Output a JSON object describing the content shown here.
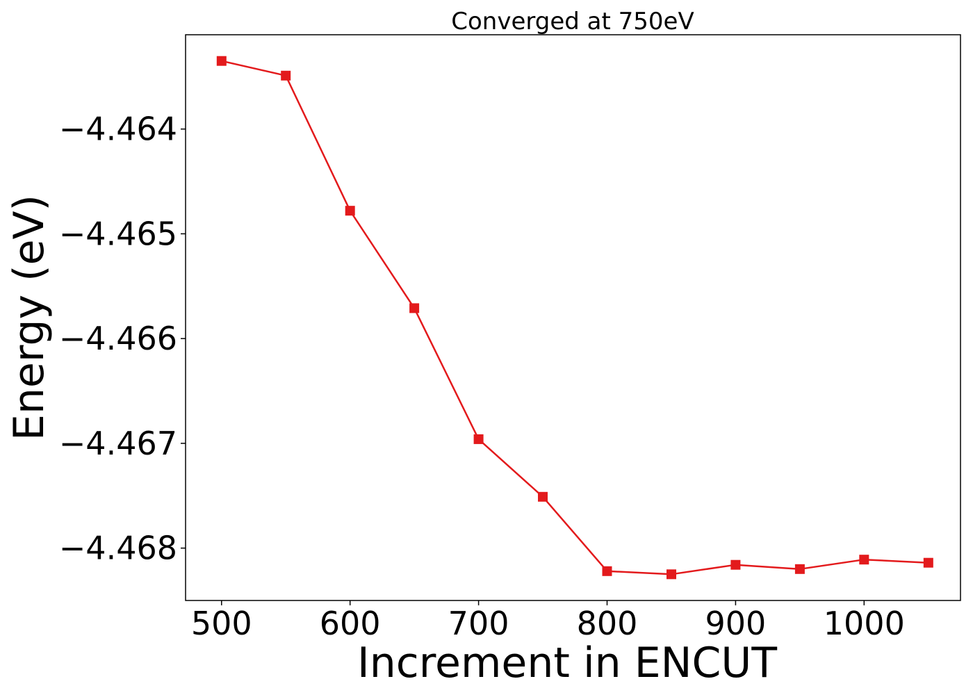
{
  "chart_data": {
    "type": "line",
    "title": "Converged at 750eV",
    "xlabel": "Increment in ENCUT",
    "ylabel": "Energy (eV)",
    "xlim": [
      472,
      1075
    ],
    "ylim": [
      -4.4685,
      -4.4631
    ],
    "x_ticks": [
      500,
      600,
      700,
      800,
      900,
      1000
    ],
    "x_tick_labels": [
      "500",
      "600",
      "700",
      "800",
      "900",
      "1000"
    ],
    "y_ticks": [
      -4.464,
      -4.465,
      -4.466,
      -4.467,
      -4.468
    ],
    "y_tick_labels": [
      "−4.464",
      "−4.465",
      "−4.466",
      "−4.467",
      "−4.468"
    ],
    "grid": false,
    "legend": "none",
    "series": [
      {
        "color": "#e31a1c",
        "marker": "square",
        "x": [
          500,
          550,
          600,
          650,
          700,
          750,
          800,
          850,
          900,
          950,
          1000,
          1050
        ],
        "y": [
          -4.46335,
          -4.46349,
          -4.46478,
          -4.46571,
          -4.46696,
          -4.46751,
          -4.46822,
          -4.46825,
          -4.46816,
          -4.4682,
          -4.46811,
          -4.46814
        ]
      }
    ]
  }
}
